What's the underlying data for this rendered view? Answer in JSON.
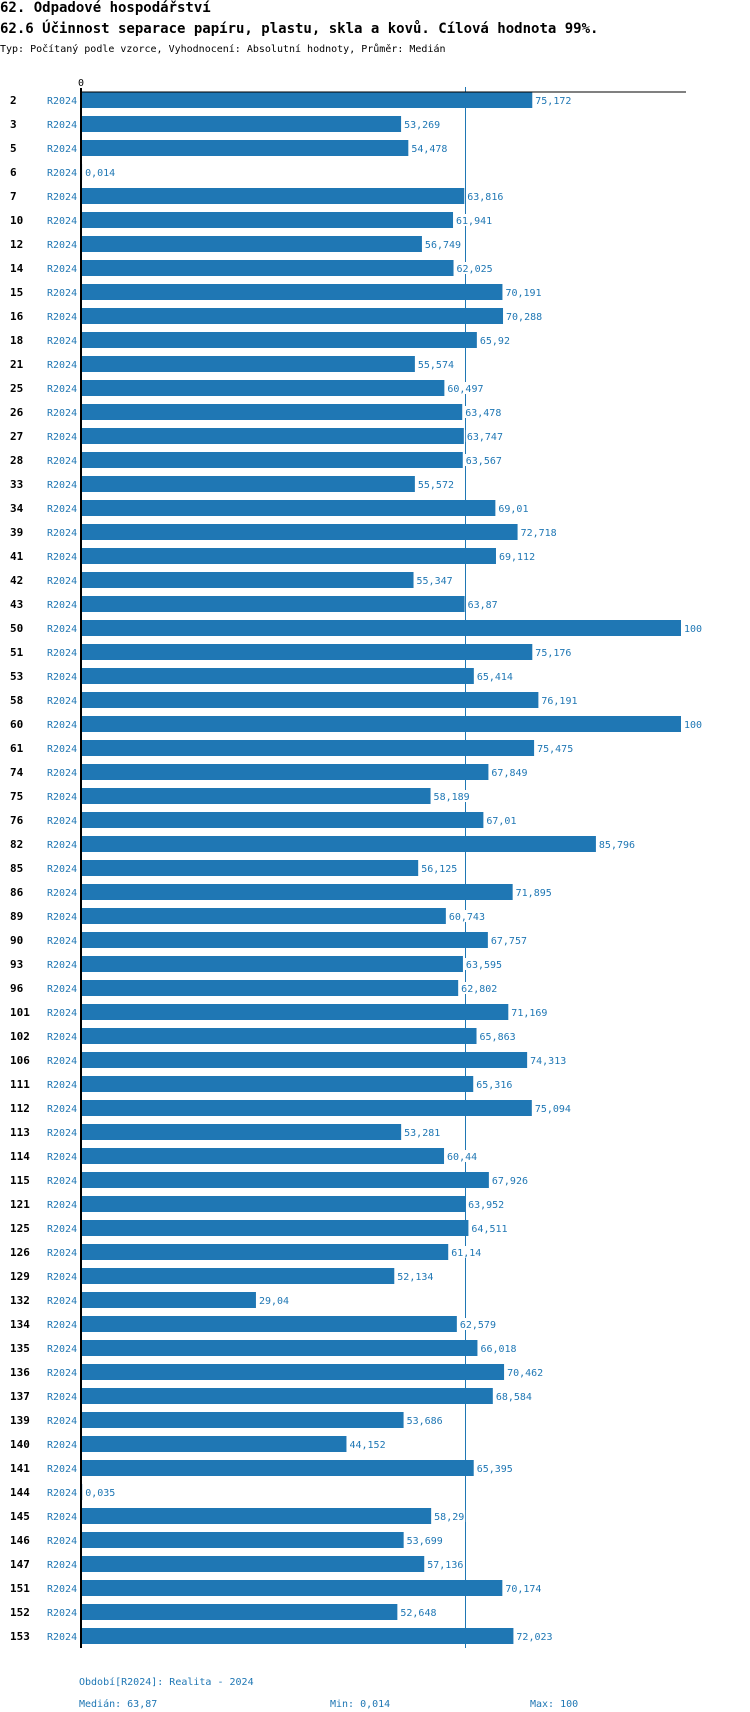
{
  "header": {
    "title": "62. Odpadové hospodářství",
    "subtitle": "62.6 Účinnost separace papíru, plastu, skla a kovů. Cílová hodnota 99%.",
    "meta": "Typ: Počítaný podle vzorce, Vyhodnocení: Absolutní hodnoty, Průměr: Medián"
  },
  "colors": {
    "bar": "#1f77b4",
    "median_line": "#1f77b4",
    "axis": "#000000",
    "label": "#1f77b4"
  },
  "chart_data": {
    "type": "bar",
    "orientation": "horizontal",
    "title": "62.6 Účinnost separace papíru, plastu, skla a kovů. Cílová hodnota 99%.",
    "xlim": [
      0,
      100
    ],
    "x_tick_labels": [
      "0"
    ],
    "series_name": "R2024",
    "median": 63.87,
    "median_label": "63,87",
    "categories": [
      "2",
      "3",
      "5",
      "6",
      "7",
      "10",
      "12",
      "14",
      "15",
      "16",
      "18",
      "21",
      "25",
      "26",
      "27",
      "28",
      "33",
      "34",
      "39",
      "41",
      "42",
      "43",
      "50",
      "51",
      "53",
      "58",
      "60",
      "61",
      "74",
      "75",
      "76",
      "82",
      "85",
      "86",
      "89",
      "90",
      "93",
      "96",
      "101",
      "102",
      "106",
      "111",
      "112",
      "113",
      "114",
      "115",
      "121",
      "125",
      "126",
      "129",
      "132",
      "134",
      "135",
      "136",
      "137",
      "139",
      "140",
      "141",
      "144",
      "145",
      "146",
      "147",
      "151",
      "152",
      "153"
    ],
    "values": [
      75.172,
      53.269,
      54.478,
      0.014,
      63.816,
      61.941,
      56.749,
      62.025,
      70.191,
      70.288,
      65.92,
      55.574,
      60.497,
      63.478,
      63.747,
      63.567,
      55.572,
      69.01,
      72.718,
      69.112,
      55.347,
      63.87,
      100,
      75.176,
      65.414,
      76.191,
      100,
      75.475,
      67.849,
      58.189,
      67.01,
      85.796,
      56.125,
      71.895,
      60.743,
      67.757,
      63.595,
      62.802,
      71.169,
      65.863,
      74.313,
      65.316,
      75.094,
      53.281,
      60.44,
      67.926,
      63.952,
      64.511,
      61.14,
      52.134,
      29.04,
      62.579,
      66.018,
      70.462,
      68.584,
      53.686,
      44.152,
      65.395,
      0.035,
      58.29,
      53.699,
      57.136,
      70.174,
      52.648,
      72.023
    ],
    "value_labels": [
      "75,172",
      "53,269",
      "54,478",
      "0,014",
      "63,816",
      "61,941",
      "56,749",
      "62,025",
      "70,191",
      "70,288",
      "65,92",
      "55,574",
      "60,497",
      "63,478",
      "63,747",
      "63,567",
      "55,572",
      "69,01",
      "72,718",
      "69,112",
      "55,347",
      "63,87",
      "100",
      "75,176",
      "65,414",
      "76,191",
      "100",
      "75,475",
      "67,849",
      "58,189",
      "67,01",
      "85,796",
      "56,125",
      "71,895",
      "60,743",
      "67,757",
      "63,595",
      "62,802",
      "71,169",
      "65,863",
      "74,313",
      "65,316",
      "75,094",
      "53,281",
      "60,44",
      "67,926",
      "63,952",
      "64,511",
      "61,14",
      "52,134",
      "29,04",
      "62,579",
      "66,018",
      "70,462",
      "68,584",
      "53,686",
      "44,152",
      "65,395",
      "0,035",
      "58,29",
      "53,699",
      "57,136",
      "70,174",
      "52,648",
      "72,023"
    ]
  },
  "footer": {
    "period": "Období[R2024]: Realita - 2024",
    "median": "Medián: 63,87",
    "min": "Min: 0,014",
    "max": "Max: 100"
  }
}
